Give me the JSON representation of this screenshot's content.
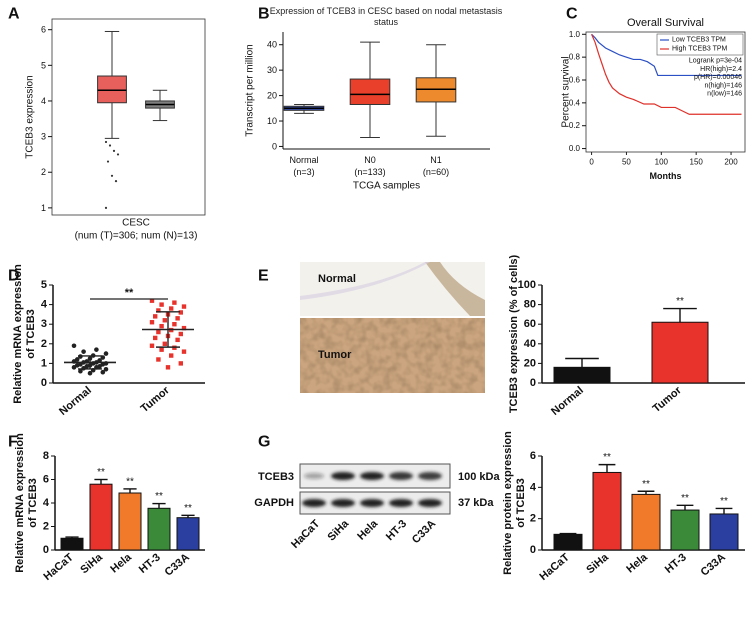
{
  "chart_data": [
    {
      "panel": "A",
      "type": "box",
      "ylabel": "TCEB3 expression",
      "xlabel": "CESC",
      "note": "(num (T)=306; num (N)=13)",
      "ylim": [
        0.8,
        6.3
      ],
      "yticks": [
        1,
        2,
        3,
        4,
        5,
        6
      ],
      "frame": true,
      "boxes": [
        {
          "color": "#e8605c",
          "low": 2.95,
          "q1": 3.95,
          "median": 4.3,
          "q3": 4.7,
          "high": 5.95,
          "outliers": [
            1.0,
            1.75,
            1.9,
            2.3,
            2.5,
            2.6,
            2.75,
            2.85
          ]
        },
        {
          "color": "#7f7f7f",
          "low": 3.45,
          "q1": 3.8,
          "median": 3.9,
          "q3": 4.0,
          "high": 4.3,
          "outliers": []
        }
      ]
    },
    {
      "panel": "B",
      "type": "box",
      "title": "Expression of TCEB3 in CESC based on nodal metastasis status",
      "ylabel": "Transcript per million",
      "xlabel": "TCGA samples",
      "categories": [
        "Normal",
        "N0",
        "N1"
      ],
      "category_notes": [
        "(n=3)",
        "(n=133)",
        "(n=60)"
      ],
      "ylim": [
        -1,
        45
      ],
      "yticks": [
        0,
        10,
        20,
        30,
        40
      ],
      "boxes": [
        {
          "color": "#3a4fa8",
          "low": 13,
          "q1": 14.2,
          "median": 15,
          "q3": 15.8,
          "high": 16.5
        },
        {
          "color": "#e8402a",
          "low": 3.5,
          "q1": 16.5,
          "median": 20.5,
          "q3": 26.5,
          "high": 41
        },
        {
          "color": "#ee8a2e",
          "low": 4,
          "q1": 17.5,
          "median": 22.5,
          "q3": 27,
          "high": 40
        }
      ]
    },
    {
      "panel": "C",
      "type": "line",
      "title": "Overall Survival",
      "ylabel": "Percent survival",
      "xlabel": "Months",
      "xlim": [
        -8,
        220
      ],
      "ylim": [
        -0.03,
        1.02
      ],
      "xticks": [
        0,
        50,
        100,
        150,
        200
      ],
      "yticks": [
        {
          "value": 0,
          "label": "0.0"
        },
        0.2,
        0.4,
        0.6,
        0.8,
        {
          "value": 1,
          "label": "1.0"
        }
      ],
      "frame": true,
      "series": [
        {
          "name": "Low TCEB3 TPM",
          "color": "#2b4fc4",
          "x": [
            0,
            5,
            10,
            20,
            30,
            40,
            50,
            60,
            70,
            80,
            90,
            95,
            100,
            215
          ],
          "values": [
            1,
            0.97,
            0.93,
            0.88,
            0.85,
            0.82,
            0.8,
            0.78,
            0.78,
            0.76,
            0.72,
            0.64,
            0.64,
            0.64
          ]
        },
        {
          "name": "High TCEB3 TPM",
          "color": "#e0302a",
          "x": [
            0,
            5,
            10,
            15,
            20,
            25,
            30,
            40,
            50,
            60,
            75,
            90,
            100,
            120,
            130,
            140,
            180,
            215
          ],
          "values": [
            1,
            0.93,
            0.83,
            0.74,
            0.65,
            0.58,
            0.53,
            0.48,
            0.45,
            0.43,
            0.39,
            0.39,
            0.36,
            0.36,
            0.33,
            0.3,
            0.3,
            0.3
          ]
        }
      ],
      "annotations": [
        "Logrank p=3e-04",
        "HR(high)=2.4",
        "p(HR)=0.00046",
        "n(high)=146",
        "n(low)=146"
      ]
    },
    {
      "panel": "D",
      "type": "strip",
      "ylabel": [
        "Relative mRNA expression",
        "of TCEB3"
      ],
      "ylim": [
        0,
        5
      ],
      "yticks": [
        0,
        1,
        2,
        3,
        4,
        5
      ],
      "categories": [
        "Normal",
        "Tumor"
      ],
      "significance": "**",
      "groups": [
        {
          "color": "#222222",
          "marker": "circle",
          "mean": 1.05,
          "sd": 0.33,
          "values": [
            1.9,
            1.7,
            1.6,
            1.5,
            1.4,
            1.35,
            1.3,
            1.25,
            1.2,
            1.15,
            1.1,
            1.1,
            1.05,
            1.05,
            1.0,
            1.0,
            0.95,
            0.95,
            0.9,
            0.9,
            0.85,
            0.85,
            0.8,
            0.8,
            0.75,
            0.7,
            0.65,
            0.6,
            0.55,
            0.5
          ]
        },
        {
          "color": "#e8322c",
          "marker": "square",
          "mean": 2.73,
          "sd": 0.9,
          "values": [
            4.2,
            4.1,
            4.0,
            3.9,
            3.8,
            3.7,
            3.6,
            3.5,
            3.4,
            3.3,
            3.2,
            3.1,
            3.0,
            2.9,
            2.8,
            2.7,
            2.6,
            2.5,
            2.4,
            2.3,
            2.2,
            2.0,
            1.9,
            1.8,
            1.7,
            1.6,
            1.4,
            1.2,
            1.0,
            0.8
          ]
        }
      ]
    },
    {
      "panel": "E",
      "type": "image",
      "labels": [
        "Normal",
        "Tumor"
      ]
    },
    {
      "type": "bar",
      "ylabel": "TCEB3 expression (% of cells)",
      "ylim": [
        0,
        100
      ],
      "yticks": [
        0,
        20,
        40,
        60,
        80,
        100
      ],
      "categories": [
        "Normal",
        "Tumor"
      ],
      "values": [
        16,
        62
      ],
      "errors": [
        9,
        14
      ],
      "colors": [
        "#111111",
        "#e8322c"
      ],
      "annotations": [
        null,
        "**"
      ]
    },
    {
      "panel": "F",
      "type": "bar",
      "ylabel": [
        "Relative mRNA expression",
        "of TCEB3"
      ],
      "ylim": [
        0,
        8
      ],
      "yticks": [
        0,
        2,
        4,
        6,
        8
      ],
      "categories": [
        "HaCaT",
        "SiHa",
        "Hela",
        "HT-3",
        "C33A"
      ],
      "values": [
        1,
        5.6,
        4.85,
        3.55,
        2.75
      ],
      "errors": [
        0.1,
        0.4,
        0.35,
        0.4,
        0.2
      ],
      "colors": [
        "#111111",
        "#e8322c",
        "#f07a2a",
        "#3a8a3a",
        "#2a3fa0"
      ],
      "annotations": [
        null,
        "**",
        "**",
        "**",
        "**"
      ]
    },
    {
      "panel": "G",
      "type": "blot",
      "rows": [
        "TCEB3",
        "GAPDH"
      ],
      "sizes": [
        "100 kDa",
        "37 kDa"
      ],
      "lanes": [
        "HaCaT",
        "SiHa",
        "Hela",
        "HT-3",
        "C33A"
      ]
    },
    {
      "type": "bar",
      "ylabel": [
        "Relative protein expression",
        "of TCEB3"
      ],
      "ylim": [
        0,
        6
      ],
      "yticks": [
        0,
        2,
        4,
        6
      ],
      "categories": [
        "HaCaT",
        "SiHa",
        "Hela",
        "HT-3",
        "C33A"
      ],
      "values": [
        1,
        4.95,
        3.55,
        2.55,
        2.3
      ],
      "errors": [
        0.05,
        0.5,
        0.2,
        0.3,
        0.35
      ],
      "colors": [
        "#111111",
        "#e8322c",
        "#f07a2a",
        "#3a8a3a",
        "#2a3fa0"
      ],
      "annotations": [
        null,
        "**",
        "**",
        "**",
        "**"
      ]
    }
  ]
}
